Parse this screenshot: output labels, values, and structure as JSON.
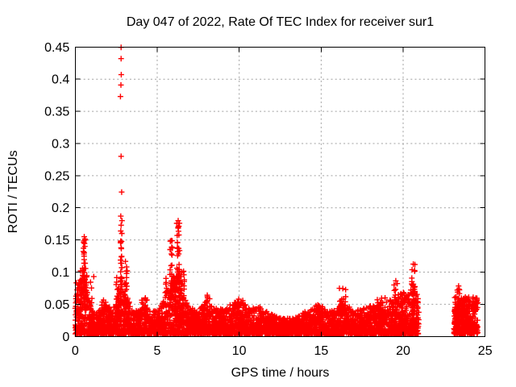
{
  "chart_data": {
    "type": "scatter",
    "title": "Day 047 of 2022, Rate Of TEC Index for receiver sur1",
    "xlabel": "GPS time / hours",
    "ylabel": "ROTI / TECUs",
    "xlim": [
      0,
      25
    ],
    "ylim": [
      0,
      0.45
    ],
    "xticks": [
      0,
      5,
      10,
      15,
      20,
      25
    ],
    "yticks": [
      0,
      0.05,
      0.1,
      0.15,
      0.2,
      0.25,
      0.3,
      0.35,
      0.4,
      0.45
    ],
    "grid": true,
    "grid_color": "#a0a0a0",
    "axis_color": "#000000",
    "background_color": "#ffffff",
    "legend": null,
    "marker": {
      "shape": "plus",
      "color": "#ff0000",
      "size": 7
    },
    "seed": 20220047,
    "peak_points": [
      [
        2.8,
        0.4495
      ],
      [
        2.8,
        0.432
      ],
      [
        2.81,
        0.407
      ],
      [
        2.79,
        0.391
      ],
      [
        2.76,
        0.373
      ],
      [
        2.8,
        0.28
      ],
      [
        2.83,
        0.2245
      ],
      [
        2.78,
        0.187
      ],
      [
        2.85,
        0.18
      ],
      [
        2.8,
        0.173
      ],
      [
        2.84,
        0.16
      ],
      [
        0.55,
        0.155
      ],
      [
        0.53,
        0.1485
      ],
      [
        6.28,
        0.18
      ],
      [
        6.3,
        0.171
      ],
      [
        5.85,
        0.149
      ],
      [
        16.32,
        0.0745
      ],
      [
        19.55,
        0.0865
      ],
      [
        20.62,
        0.1125
      ],
      [
        23.38,
        0.0785
      ],
      [
        23.43,
        0.0725
      ],
      [
        24.45,
        0.054
      ],
      [
        1.13,
        0.093
      ],
      [
        2.53,
        0.0915
      ]
    ],
    "baseline_band": {
      "x_start": 0,
      "x_end": 20.95,
      "y_min": 0.004,
      "n": 4200,
      "power": 2.1,
      "envelope": [
        [
          0,
          0.055
        ],
        [
          0.3,
          0.09
        ],
        [
          0.5,
          0.1
        ],
        [
          0.7,
          0.075
        ],
        [
          1.0,
          0.045
        ],
        [
          1.3,
          0.035
        ],
        [
          1.6,
          0.045
        ],
        [
          1.9,
          0.055
        ],
        [
          2.2,
          0.04
        ],
        [
          2.5,
          0.055
        ],
        [
          2.8,
          0.075
        ],
        [
          3.1,
          0.07
        ],
        [
          3.4,
          0.045
        ],
        [
          3.7,
          0.04
        ],
        [
          4.0,
          0.042
        ],
        [
          4.3,
          0.05
        ],
        [
          4.6,
          0.04
        ],
        [
          5.0,
          0.042
        ],
        [
          5.3,
          0.05
        ],
        [
          5.6,
          0.07
        ],
        [
          5.9,
          0.09
        ],
        [
          6.2,
          0.095
        ],
        [
          6.5,
          0.08
        ],
        [
          6.8,
          0.05
        ],
        [
          7.1,
          0.04
        ],
        [
          7.5,
          0.042
        ],
        [
          8.0,
          0.055
        ],
        [
          8.5,
          0.045
        ],
        [
          9.0,
          0.042
        ],
        [
          9.5,
          0.05
        ],
        [
          10.0,
          0.057
        ],
        [
          10.4,
          0.05
        ],
        [
          10.8,
          0.042
        ],
        [
          11.2,
          0.046
        ],
        [
          11.6,
          0.04
        ],
        [
          12.0,
          0.035
        ],
        [
          12.4,
          0.03
        ],
        [
          12.8,
          0.028
        ],
        [
          13.2,
          0.028
        ],
        [
          13.6,
          0.032
        ],
        [
          14.0,
          0.036
        ],
        [
          14.4,
          0.044
        ],
        [
          14.8,
          0.05
        ],
        [
          15.2,
          0.042
        ],
        [
          15.6,
          0.04
        ],
        [
          16.0,
          0.045
        ],
        [
          16.3,
          0.06
        ],
        [
          16.6,
          0.05
        ],
        [
          17.0,
          0.04
        ],
        [
          17.4,
          0.042
        ],
        [
          17.8,
          0.045
        ],
        [
          18.2,
          0.05
        ],
        [
          18.6,
          0.055
        ],
        [
          19.0,
          0.055
        ],
        [
          19.4,
          0.06
        ],
        [
          19.8,
          0.06
        ],
        [
          20.2,
          0.062
        ],
        [
          20.5,
          0.075
        ],
        [
          20.8,
          0.07
        ],
        [
          20.95,
          0.055
        ]
      ]
    },
    "bursts": [
      {
        "x": 0.12,
        "w": 0.12,
        "y0": 0.03,
        "y1": 0.088,
        "n": 20
      },
      {
        "x": 0.5,
        "w": 0.22,
        "y0": 0.04,
        "y1": 0.108,
        "n": 60
      },
      {
        "x": 0.55,
        "w": 0.06,
        "y0": 0.08,
        "y1": 0.158,
        "n": 24
      },
      {
        "x": 0.95,
        "w": 0.08,
        "y0": 0.04,
        "y1": 0.092,
        "n": 8
      },
      {
        "x": 1.85,
        "w": 0.25,
        "y0": 0.02,
        "y1": 0.058,
        "n": 30
      },
      {
        "x": 2.55,
        "w": 0.08,
        "y0": 0.04,
        "y1": 0.09,
        "n": 8
      },
      {
        "x": 2.8,
        "w": 0.05,
        "y0": 0.05,
        "y1": 0.165,
        "n": 30
      },
      {
        "x": 3.1,
        "w": 0.09,
        "y0": 0.04,
        "y1": 0.122,
        "n": 16
      },
      {
        "x": 2.95,
        "w": 0.3,
        "y0": 0.02,
        "y1": 0.085,
        "n": 40
      },
      {
        "x": 4.25,
        "w": 0.2,
        "y0": 0.015,
        "y1": 0.06,
        "n": 18
      },
      {
        "x": 5.6,
        "w": 0.12,
        "y0": 0.03,
        "y1": 0.098,
        "n": 16
      },
      {
        "x": 5.85,
        "w": 0.08,
        "y0": 0.04,
        "y1": 0.152,
        "n": 28
      },
      {
        "x": 6.05,
        "w": 0.1,
        "y0": 0.03,
        "y1": 0.105,
        "n": 25
      },
      {
        "x": 6.28,
        "w": 0.09,
        "y0": 0.04,
        "y1": 0.182,
        "n": 40
      },
      {
        "x": 6.45,
        "w": 0.22,
        "y0": 0.02,
        "y1": 0.105,
        "n": 55
      },
      {
        "x": 7.0,
        "w": 0.2,
        "y0": 0.01,
        "y1": 0.052,
        "n": 18
      },
      {
        "x": 8.0,
        "w": 0.2,
        "y0": 0.015,
        "y1": 0.068,
        "n": 22
      },
      {
        "x": 8.8,
        "w": 0.25,
        "y0": 0.01,
        "y1": 0.046,
        "n": 16
      },
      {
        "x": 10.1,
        "w": 0.3,
        "y0": 0.015,
        "y1": 0.058,
        "n": 30
      },
      {
        "x": 11.1,
        "w": 0.25,
        "y0": 0.012,
        "y1": 0.047,
        "n": 18
      },
      {
        "x": 13.9,
        "w": 0.15,
        "y0": 0.01,
        "y1": 0.04,
        "n": 10
      },
      {
        "x": 14.8,
        "w": 0.3,
        "y0": 0.015,
        "y1": 0.053,
        "n": 25
      },
      {
        "x": 16.3,
        "w": 0.2,
        "y0": 0.02,
        "y1": 0.075,
        "n": 26
      },
      {
        "x": 18.6,
        "w": 0.3,
        "y0": 0.02,
        "y1": 0.06,
        "n": 22
      },
      {
        "x": 19.55,
        "w": 0.12,
        "y0": 0.03,
        "y1": 0.088,
        "n": 16
      },
      {
        "x": 20.0,
        "w": 0.3,
        "y0": 0.02,
        "y1": 0.07,
        "n": 26
      },
      {
        "x": 20.62,
        "w": 0.1,
        "y0": 0.03,
        "y1": 0.113,
        "n": 32
      },
      {
        "x": 23.38,
        "w": 0.08,
        "y0": 0.02,
        "y1": 0.076,
        "n": 14
      },
      {
        "x": 23.7,
        "w": 0.2,
        "y0": 0.01,
        "y1": 0.06,
        "n": 25
      },
      {
        "x": 24.4,
        "w": 0.12,
        "y0": 0.015,
        "y1": 0.052,
        "n": 12
      }
    ],
    "end_cluster": {
      "x_start": 23.08,
      "x_end": 24.55,
      "y_min": 0.004,
      "y_max": 0.062,
      "n": 330,
      "power": 1.5
    }
  }
}
